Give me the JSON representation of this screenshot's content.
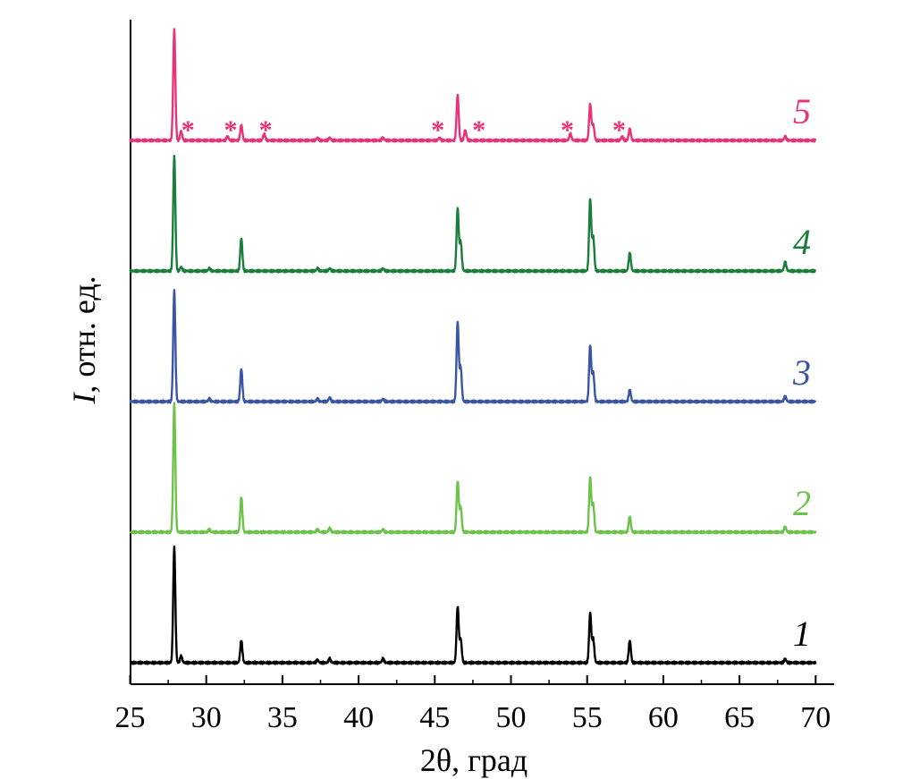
{
  "chart_data": {
    "type": "line",
    "xlabel": "2θ, град",
    "ylabel_symbol": "I",
    "ylabel_rest": ", отн. ед.",
    "xlim": [
      25,
      70
    ],
    "xticks": [
      25,
      30,
      35,
      40,
      45,
      50,
      55,
      60,
      65,
      70
    ],
    "xtick_labels": [
      "25",
      "30",
      "35",
      "40",
      "45",
      "50",
      "55",
      "60",
      "65",
      "70"
    ],
    "y_ticks_shown": false,
    "grid": false,
    "series": [
      {
        "name": "1",
        "color": "#000000",
        "baseline": 0.0,
        "peaks": [
          [
            27.9,
            0.88
          ],
          [
            28.35,
            0.05
          ],
          [
            32.3,
            0.17
          ],
          [
            37.3,
            0.02
          ],
          [
            38.1,
            0.03
          ],
          [
            41.6,
            0.03
          ],
          [
            46.5,
            0.43
          ],
          [
            46.7,
            0.18
          ],
          [
            55.2,
            0.38
          ],
          [
            55.4,
            0.18
          ],
          [
            57.8,
            0.17
          ],
          [
            68.0,
            0.03
          ]
        ]
      },
      {
        "name": "2",
        "color": "#6cc24a",
        "baseline": 1.0,
        "peaks": [
          [
            27.9,
            0.98
          ],
          [
            30.2,
            0.02
          ],
          [
            32.3,
            0.27
          ],
          [
            37.3,
            0.02
          ],
          [
            38.1,
            0.03
          ],
          [
            41.6,
            0.02
          ],
          [
            46.5,
            0.39
          ],
          [
            46.7,
            0.19
          ],
          [
            55.2,
            0.42
          ],
          [
            55.4,
            0.21
          ],
          [
            57.8,
            0.12
          ],
          [
            68.0,
            0.04
          ]
        ]
      },
      {
        "name": "3",
        "color": "#3a55a4",
        "baseline": 2.0,
        "peaks": [
          [
            27.9,
            0.85
          ],
          [
            30.2,
            0.02
          ],
          [
            32.3,
            0.25
          ],
          [
            37.3,
            0.02
          ],
          [
            38.1,
            0.03
          ],
          [
            41.6,
            0.02
          ],
          [
            46.5,
            0.61
          ],
          [
            46.7,
            0.26
          ],
          [
            55.2,
            0.43
          ],
          [
            55.4,
            0.22
          ],
          [
            57.8,
            0.09
          ],
          [
            68.0,
            0.04
          ]
        ]
      },
      {
        "name": "4",
        "color": "#1a7d3a",
        "baseline": 3.0,
        "peaks": [
          [
            27.9,
            0.88
          ],
          [
            28.35,
            0.03
          ],
          [
            30.2,
            0.02
          ],
          [
            32.3,
            0.25
          ],
          [
            37.3,
            0.02
          ],
          [
            38.1,
            0.02
          ],
          [
            41.6,
            0.02
          ],
          [
            46.5,
            0.48
          ],
          [
            46.7,
            0.22
          ],
          [
            55.2,
            0.55
          ],
          [
            55.4,
            0.26
          ],
          [
            57.8,
            0.14
          ],
          [
            68.0,
            0.07
          ]
        ]
      },
      {
        "name": "5",
        "color": "#e8337a",
        "baseline": 4.0,
        "peaks": [
          [
            27.9,
            0.85
          ],
          [
            28.35,
            0.07
          ],
          [
            31.4,
            0.03
          ],
          [
            32.3,
            0.12
          ],
          [
            33.8,
            0.05
          ],
          [
            37.3,
            0.02
          ],
          [
            38.1,
            0.02
          ],
          [
            41.6,
            0.02
          ],
          [
            45.3,
            0.02
          ],
          [
            46.5,
            0.35
          ],
          [
            47.0,
            0.08
          ],
          [
            53.9,
            0.05
          ],
          [
            55.2,
            0.28
          ],
          [
            55.4,
            0.12
          ],
          [
            57.3,
            0.03
          ],
          [
            57.8,
            0.09
          ],
          [
            68.0,
            0.03
          ]
        ]
      }
    ],
    "impurity_marker": "*",
    "impurity_positions": [
      28.8,
      31.6,
      33.9,
      45.2,
      47.9,
      53.7,
      57.1
    ]
  }
}
